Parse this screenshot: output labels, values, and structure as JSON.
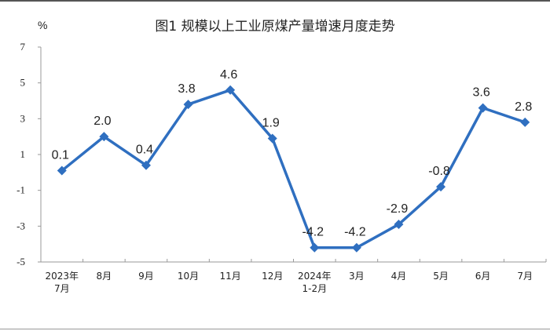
{
  "chart_data": {
    "type": "line",
    "title": "图1  规模以上工业原煤产量增速月度走势",
    "ylabel": "%",
    "xlabel": "",
    "ylim": [
      -5,
      7
    ],
    "yticks": [
      7,
      5,
      3,
      1,
      -1,
      -3,
      -5
    ],
    "categories": [
      "2023年\n7月",
      "8月",
      "9月",
      "10月",
      "11月",
      "12月",
      "2024年\n1-2月",
      "3月",
      "4月",
      "5月",
      "6月",
      "7月"
    ],
    "series": [
      {
        "name": "原煤产量增速",
        "color": "#2f6fc0",
        "values": [
          0.1,
          2.0,
          0.4,
          3.8,
          4.6,
          1.9,
          -4.2,
          -4.2,
          -2.9,
          -0.8,
          3.6,
          2.8
        ]
      }
    ],
    "data_labels": [
      "0.1",
      "2.0",
      "0.4",
      "3.8",
      "4.6",
      "1.9",
      "-4.2",
      "-4.2",
      "-2.9",
      "-0.8",
      "3.6",
      "2.8"
    ],
    "grid": false,
    "legend": "none"
  }
}
